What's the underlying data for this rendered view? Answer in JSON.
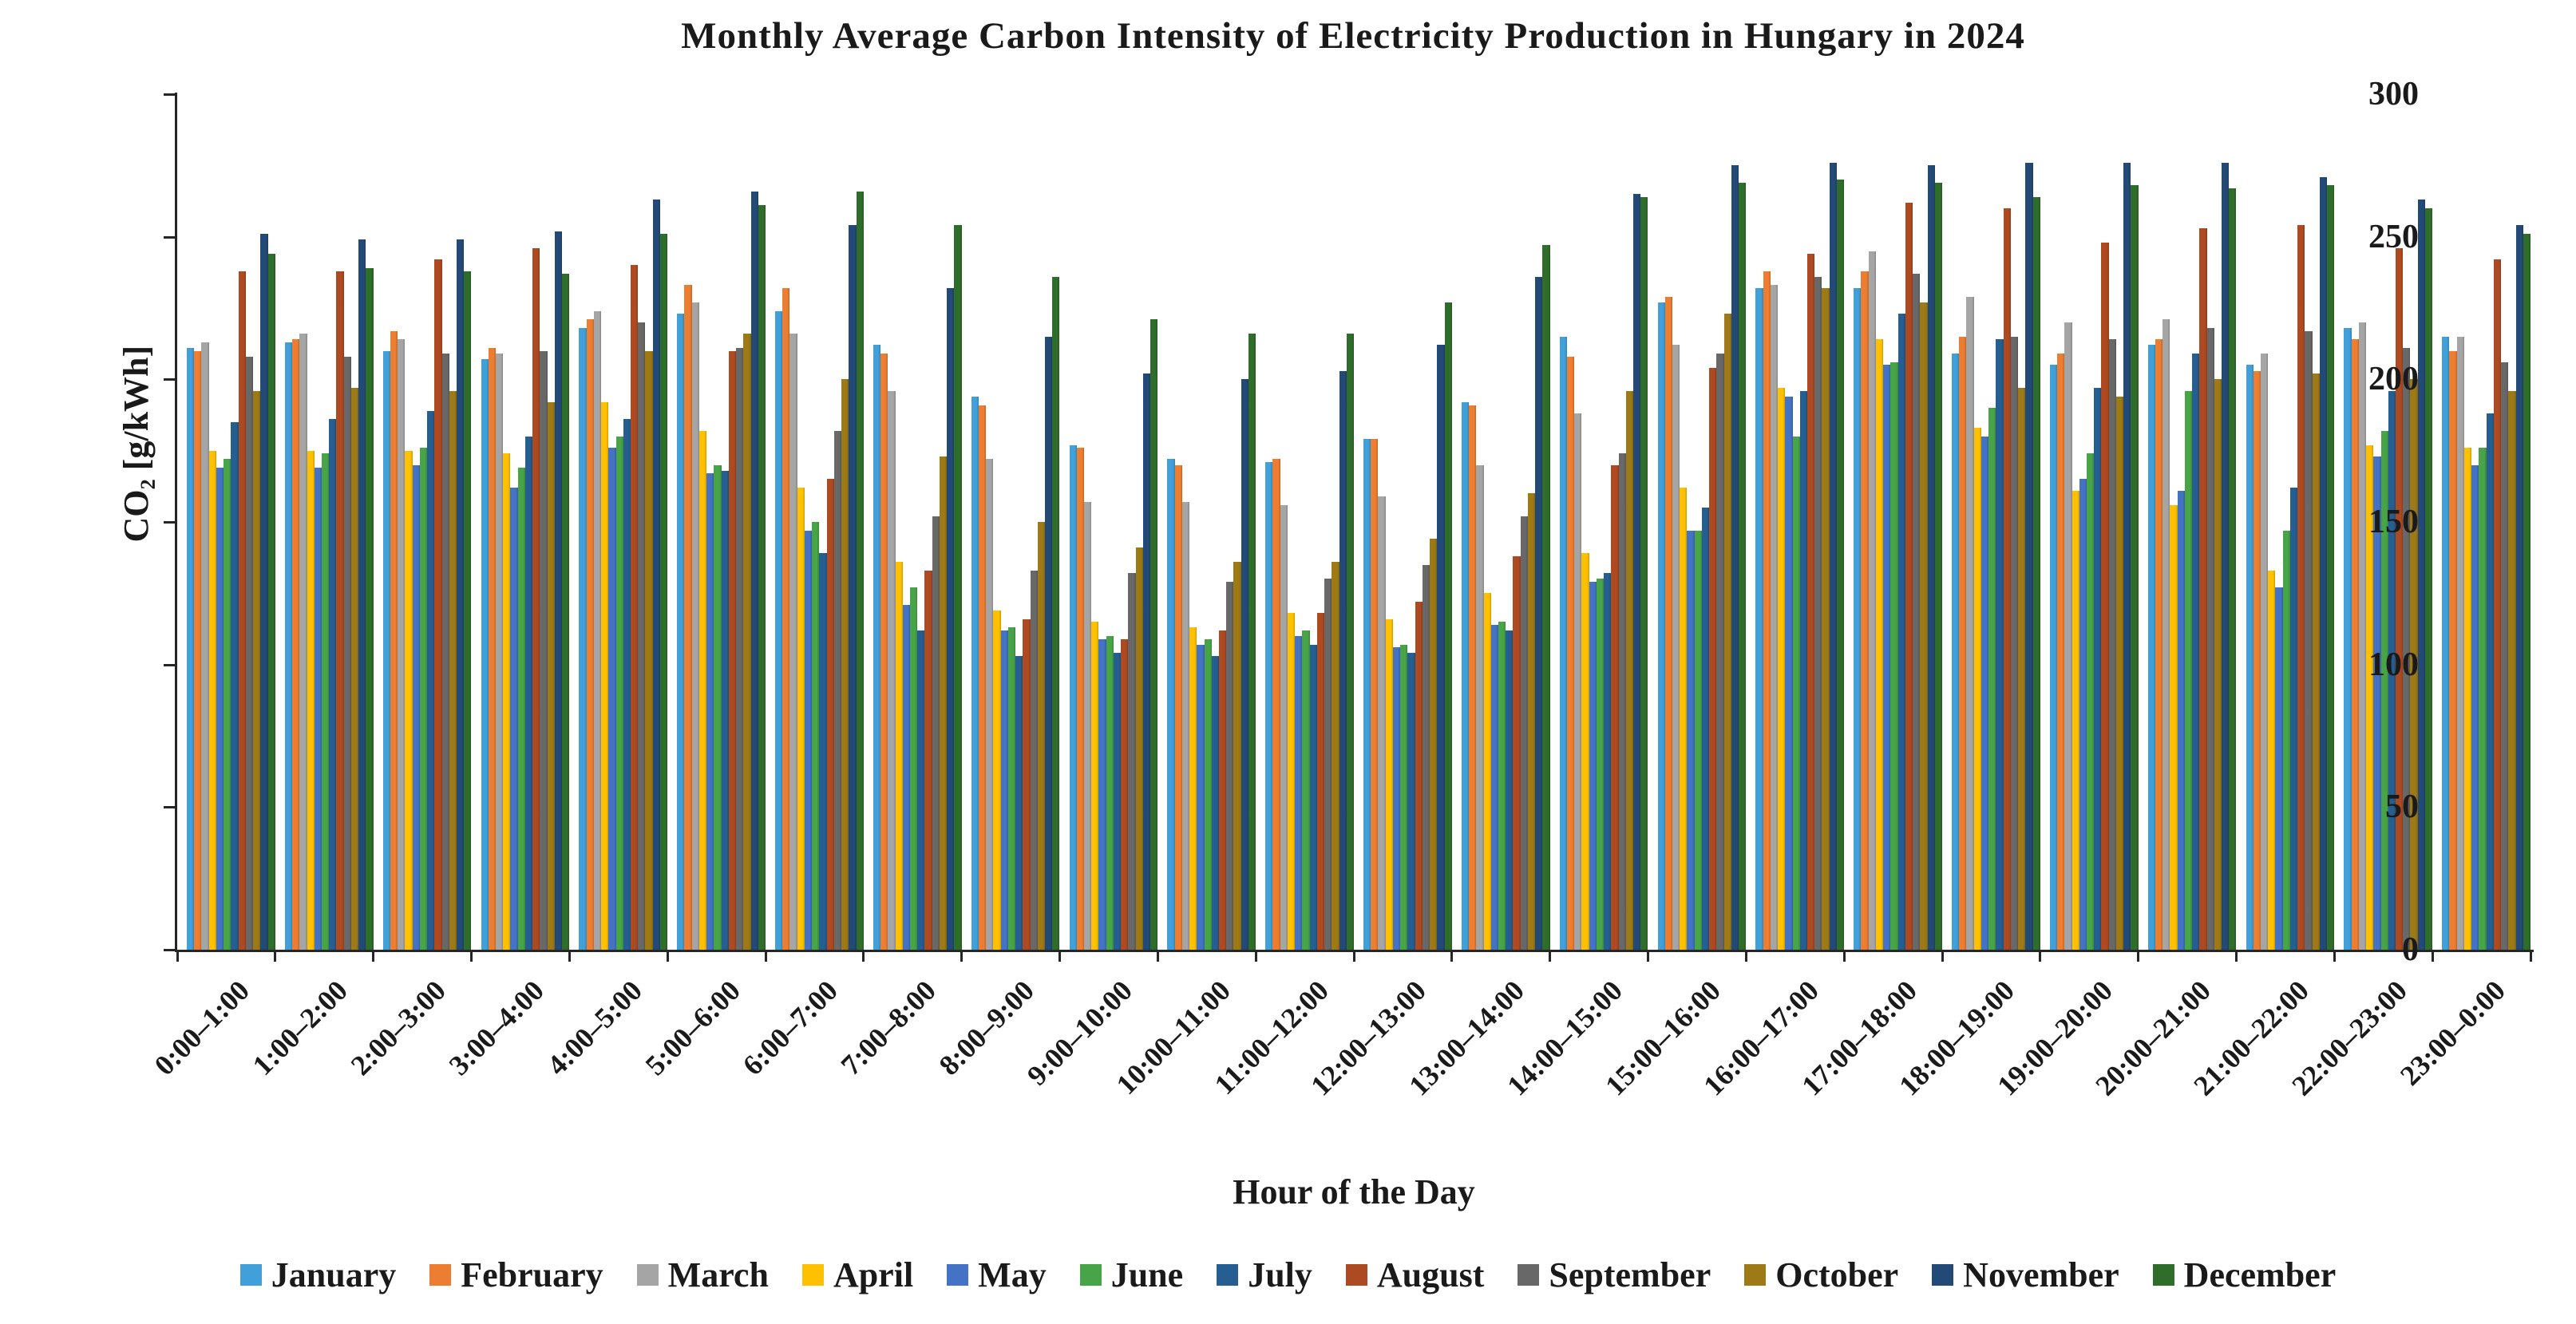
{
  "title": "Monthly Average Carbon Intensity of Electricity Production in Hungary in 2024",
  "y_axis": {
    "label": "CO₂ [g/kWh]",
    "ticks": [
      0,
      50,
      100,
      150,
      200,
      250,
      300
    ],
    "max": 300
  },
  "x_axis": {
    "label": "Hour of the Day"
  },
  "chart_data": {
    "type": "bar",
    "title": "Monthly Average Carbon Intensity of Electricity Production in Hungary in 2024",
    "xlabel": "Hour of the Day",
    "ylabel": "CO₂ [g/kWh]",
    "ylim": [
      0,
      300
    ],
    "grid": false,
    "legend_position": "bottom",
    "categories": [
      "0:00–1:00",
      "1:00–2:00",
      "2:00–3:00",
      "3:00–4:00",
      "4:00–5:00",
      "5:00–6:00",
      "6:00–7:00",
      "7:00–8:00",
      "8:00–9:00",
      "9:00–10:00",
      "10:00–11:00",
      "11:00–12:00",
      "12:00–13:00",
      "13:00–14:00",
      "14:00–15:00",
      "15:00–16:00",
      "16:00–17:00",
      "17:00–18:00",
      "18:00–19:00",
      "19:00–20:00",
      "20:00–21:00",
      "21:00–22:00",
      "22:00–23:00",
      "23:00–0:00"
    ],
    "series": [
      {
        "name": "January",
        "color": "#41A0D9",
        "values": [
          211,
          213,
          210,
          207,
          218,
          223,
          224,
          212,
          194,
          177,
          172,
          171,
          179,
          192,
          215,
          227,
          232,
          232,
          209,
          205,
          212,
          205,
          218,
          215
        ]
      },
      {
        "name": "February",
        "color": "#ED7D31",
        "values": [
          210,
          214,
          217,
          211,
          221,
          233,
          232,
          209,
          191,
          176,
          170,
          172,
          179,
          191,
          208,
          229,
          238,
          238,
          215,
          209,
          214,
          203,
          214,
          210
        ]
      },
      {
        "name": "March",
        "color": "#A5A5A5",
        "values": [
          213,
          216,
          214,
          209,
          224,
          227,
          216,
          196,
          172,
          157,
          157,
          156,
          159,
          170,
          188,
          212,
          233,
          245,
          229,
          220,
          221,
          209,
          220,
          215
        ]
      },
      {
        "name": "April",
        "color": "#FFC000",
        "values": [
          175,
          175,
          175,
          174,
          192,
          182,
          162,
          136,
          119,
          115,
          113,
          118,
          116,
          125,
          139,
          162,
          197,
          214,
          183,
          161,
          156,
          133,
          177,
          176
        ]
      },
      {
        "name": "May",
        "color": "#4472C4",
        "values": [
          169,
          169,
          170,
          162,
          176,
          167,
          147,
          121,
          112,
          109,
          107,
          110,
          106,
          114,
          129,
          147,
          194,
          205,
          180,
          165,
          161,
          127,
          173,
          170
        ]
      },
      {
        "name": "June",
        "color": "#47A547",
        "values": [
          172,
          174,
          176,
          169,
          180,
          170,
          150,
          127,
          113,
          110,
          109,
          112,
          107,
          115,
          130,
          147,
          180,
          206,
          190,
          174,
          196,
          147,
          182,
          176
        ]
      },
      {
        "name": "July",
        "color": "#255E91",
        "values": [
          185,
          186,
          189,
          180,
          186,
          168,
          139,
          112,
          103,
          104,
          103,
          107,
          104,
          112,
          132,
          155,
          196,
          223,
          214,
          197,
          209,
          162,
          196,
          188
        ]
      },
      {
        "name": "August",
        "color": "#AE4A21",
        "values": [
          238,
          238,
          242,
          246,
          240,
          210,
          165,
          133,
          116,
          109,
          112,
          118,
          122,
          138,
          170,
          204,
          244,
          262,
          260,
          248,
          253,
          254,
          246,
          242
        ]
      },
      {
        "name": "September",
        "color": "#686868",
        "values": [
          208,
          208,
          209,
          210,
          220,
          211,
          182,
          152,
          133,
          132,
          129,
          130,
          135,
          152,
          174,
          209,
          236,
          237,
          215,
          214,
          218,
          217,
          211,
          206
        ]
      },
      {
        "name": "October",
        "color": "#9D7A16",
        "values": [
          196,
          197,
          196,
          192,
          210,
          216,
          200,
          173,
          150,
          141,
          136,
          136,
          144,
          160,
          196,
          223,
          232,
          227,
          197,
          194,
          200,
          202,
          200,
          196
        ]
      },
      {
        "name": "November",
        "color": "#234A77",
        "values": [
          251,
          249,
          249,
          252,
          263,
          266,
          254,
          232,
          215,
          202,
          200,
          203,
          212,
          236,
          265,
          275,
          276,
          275,
          276,
          276,
          276,
          271,
          263,
          254
        ]
      },
      {
        "name": "December",
        "color": "#2F6D2A",
        "values": [
          244,
          239,
          238,
          237,
          251,
          261,
          266,
          254,
          236,
          221,
          216,
          216,
          227,
          247,
          264,
          269,
          270,
          269,
          264,
          268,
          267,
          268,
          260,
          251
        ]
      }
    ]
  }
}
